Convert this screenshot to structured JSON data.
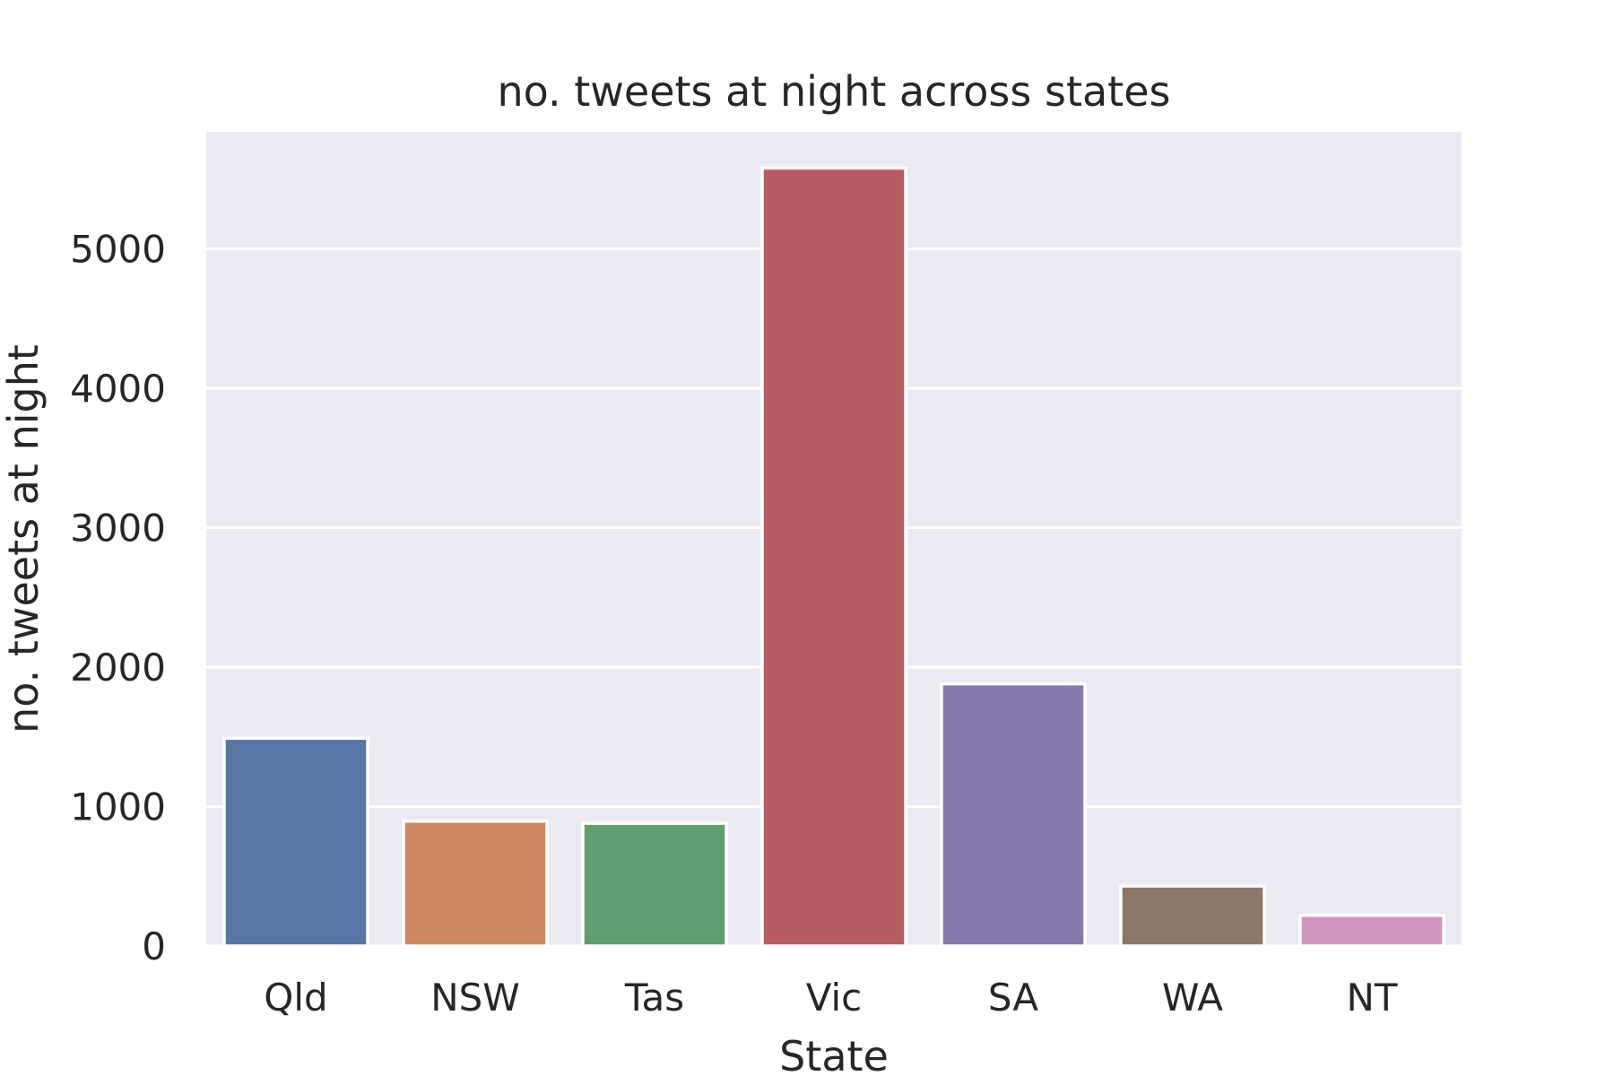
{
  "chart_data": {
    "type": "bar",
    "title": "no. tweets at night across states",
    "xlabel": "State",
    "ylabel": "no. tweets at night",
    "categories": [
      "Qld",
      "NSW",
      "Tas",
      "Vic",
      "SA",
      "WA",
      "NT"
    ],
    "values": [
      1490,
      895,
      880,
      5580,
      1880,
      430,
      220
    ],
    "colors": [
      "#5875a4",
      "#cc8963",
      "#5f9e6e",
      "#b55d60",
      "#857aab",
      "#8d7866",
      "#d095bf"
    ],
    "ylim": [
      0,
      5840
    ],
    "yticks": [
      0,
      1000,
      2000,
      3000,
      4000,
      5000
    ],
    "grid": true,
    "legend": "none",
    "background": "#eaeaf2"
  }
}
